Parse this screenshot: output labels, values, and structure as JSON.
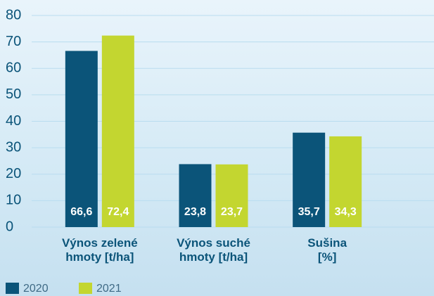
{
  "chart_data": {
    "type": "bar",
    "categories": [
      "Výnos zelené\nhmoty [t/ha]",
      "Výnos suché\nhmoty [t/ha]",
      "Sušina\n[%]"
    ],
    "series": [
      {
        "name": "2020",
        "color": "#0b5479",
        "values": [
          66.6,
          23.8,
          35.7
        ],
        "value_labels": [
          "66,6",
          "23,8",
          "35,7"
        ]
      },
      {
        "name": "2021",
        "color": "#c3d630",
        "values": [
          72.4,
          23.7,
          34.3
        ],
        "value_labels": [
          "72,4",
          "23,7",
          "34,3"
        ]
      }
    ],
    "ylim": [
      0,
      80
    ],
    "yticks": [
      0,
      10,
      20,
      30,
      40,
      50,
      60,
      70,
      80
    ],
    "grid": true,
    "legend": "bottom-left"
  }
}
